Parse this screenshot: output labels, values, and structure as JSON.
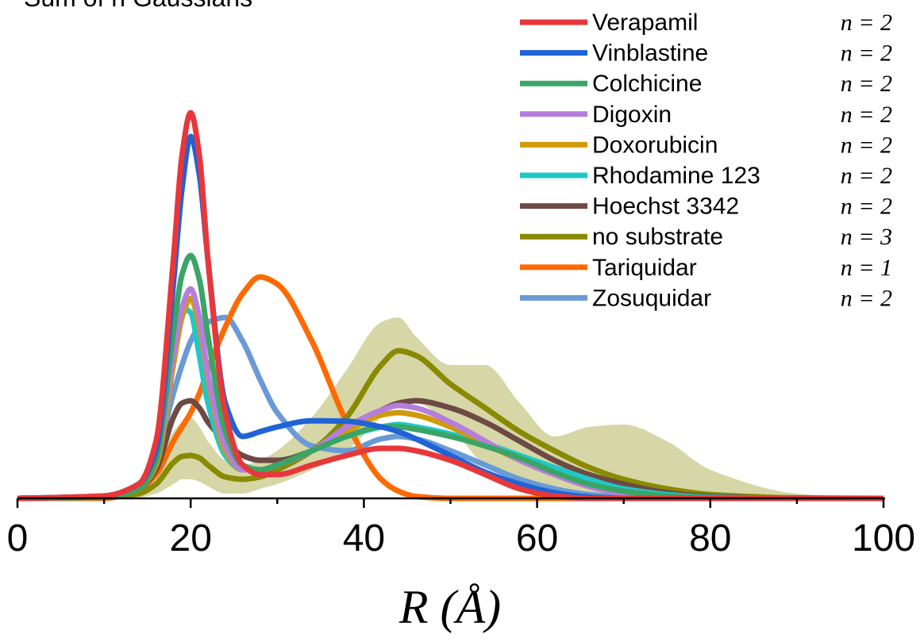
{
  "chart_data": {
    "type": "line",
    "title": "Sum of n Gaussians",
    "xlabel": "R (Å)",
    "x": [
      0,
      10,
      14,
      16,
      18,
      19,
      20,
      21,
      22,
      24,
      26,
      28,
      30,
      34,
      38,
      42,
      44,
      46,
      50,
      54,
      58,
      62,
      66,
      70,
      75,
      80,
      90,
      100
    ],
    "xlim": [
      0,
      100
    ],
    "xticks": [
      0,
      20,
      40,
      60,
      80,
      100
    ],
    "xminor_ticks": [
      10,
      30,
      50,
      70,
      90
    ],
    "ylim": [
      0,
      1
    ],
    "series": [
      {
        "name": "Verapamil",
        "annotation": "n = 2",
        "color": "#e8373a",
        "values": [
          0,
          0.005,
          0.03,
          0.12,
          0.5,
          0.72,
          0.81,
          0.72,
          0.5,
          0.18,
          0.07,
          0.05,
          0.05,
          0.07,
          0.09,
          0.105,
          0.105,
          0.1,
          0.08,
          0.05,
          0.02,
          0.005,
          0,
          0,
          0,
          0,
          0,
          0
        ]
      },
      {
        "name": "Vinblastine",
        "annotation": "n = 2",
        "color": "#1f63d6",
        "values": [
          0,
          0.005,
          0.03,
          0.1,
          0.45,
          0.65,
          0.76,
          0.68,
          0.5,
          0.2,
          0.13,
          0.14,
          0.15,
          0.163,
          0.162,
          0.15,
          0.14,
          0.125,
          0.09,
          0.055,
          0.03,
          0.012,
          0.003,
          0,
          0,
          0,
          0,
          0
        ]
      },
      {
        "name": "Colchicine",
        "annotation": "n = 2",
        "color": "#3aa565",
        "values": [
          0,
          0.003,
          0.02,
          0.08,
          0.35,
          0.47,
          0.51,
          0.46,
          0.34,
          0.14,
          0.07,
          0.06,
          0.07,
          0.1,
          0.13,
          0.15,
          0.15,
          0.145,
          0.13,
          0.11,
          0.085,
          0.055,
          0.03,
          0.015,
          0.005,
          0.001,
          0,
          0
        ]
      },
      {
        "name": "Digoxin",
        "annotation": "n = 2",
        "color": "#b57edc",
        "values": [
          0,
          0.003,
          0.02,
          0.08,
          0.3,
          0.4,
          0.44,
          0.38,
          0.26,
          0.11,
          0.06,
          0.06,
          0.07,
          0.1,
          0.15,
          0.185,
          0.195,
          0.19,
          0.16,
          0.12,
          0.08,
          0.05,
          0.025,
          0.01,
          0.003,
          0,
          0,
          0
        ]
      },
      {
        "name": "Doxorubicin",
        "annotation": "n = 2",
        "color": "#d09a0a",
        "values": [
          0,
          0.003,
          0.02,
          0.07,
          0.28,
          0.38,
          0.42,
          0.36,
          0.25,
          0.1,
          0.06,
          0.06,
          0.07,
          0.1,
          0.14,
          0.175,
          0.18,
          0.175,
          0.15,
          0.115,
          0.08,
          0.05,
          0.025,
          0.01,
          0.003,
          0,
          0,
          0
        ]
      },
      {
        "name": "Rhodamine 123",
        "annotation": "n = 2",
        "color": "#1fc8c8",
        "values": [
          0,
          0.003,
          0.02,
          0.1,
          0.33,
          0.4,
          0.39,
          0.3,
          0.2,
          0.09,
          0.06,
          0.06,
          0.07,
          0.1,
          0.13,
          0.15,
          0.155,
          0.15,
          0.135,
          0.115,
          0.09,
          0.065,
          0.04,
          0.02,
          0.008,
          0.002,
          0,
          0
        ]
      },
      {
        "name": "Hoechst 3342",
        "annotation": "n = 2",
        "color": "#6e4a45",
        "values": [
          0,
          0.003,
          0.02,
          0.06,
          0.17,
          0.2,
          0.205,
          0.19,
          0.16,
          0.12,
          0.09,
          0.08,
          0.08,
          0.1,
          0.14,
          0.185,
          0.2,
          0.205,
          0.19,
          0.16,
          0.12,
          0.08,
          0.05,
          0.03,
          0.012,
          0.004,
          0,
          0
        ]
      },
      {
        "name": "no substrate",
        "annotation": "n = 3",
        "color": "#8a8a00",
        "values": [
          0,
          0.002,
          0.01,
          0.03,
          0.075,
          0.088,
          0.09,
          0.085,
          0.07,
          0.045,
          0.04,
          0.045,
          0.06,
          0.1,
          0.17,
          0.28,
          0.31,
          0.3,
          0.24,
          0.19,
          0.14,
          0.1,
          0.065,
          0.04,
          0.02,
          0.008,
          0.001,
          0
        ],
        "band_upper": [
          0,
          0.004,
          0.02,
          0.06,
          0.14,
          0.16,
          0.17,
          0.15,
          0.12,
          0.08,
          0.07,
          0.08,
          0.1,
          0.17,
          0.27,
          0.37,
          0.38,
          0.34,
          0.28,
          0.28,
          0.2,
          0.13,
          0.15,
          0.155,
          0.12,
          0.06,
          0.01,
          0
        ],
        "band_lower": [
          0,
          0,
          0.002,
          0.01,
          0.03,
          0.04,
          0.04,
          0.035,
          0.025,
          0.01,
          0.01,
          0.02,
          0.03,
          0.06,
          0.1,
          0.17,
          0.2,
          0.2,
          0.15,
          0.07,
          0.04,
          0.02,
          0.01,
          0.005,
          0,
          0,
          0,
          0
        ]
      },
      {
        "name": "Tariquidar",
        "annotation": "n = 1",
        "color": "#ff6a00",
        "values": [
          0,
          0,
          0.02,
          0.05,
          0.12,
          0.15,
          0.18,
          0.22,
          0.27,
          0.36,
          0.43,
          0.465,
          0.45,
          0.33,
          0.16,
          0.04,
          0.015,
          0.004,
          0,
          0,
          0,
          0,
          0,
          0,
          0,
          0,
          0,
          0
        ]
      },
      {
        "name": "Zosuquidar",
        "annotation": "n = 2",
        "color": "#6a9ad6",
        "values": [
          0,
          0.003,
          0.03,
          0.09,
          0.22,
          0.28,
          0.33,
          0.36,
          0.37,
          0.38,
          0.33,
          0.25,
          0.18,
          0.11,
          0.1,
          0.125,
          0.13,
          0.125,
          0.1,
          0.07,
          0.04,
          0.02,
          0.008,
          0.003,
          0,
          0,
          0,
          0
        ]
      }
    ]
  }
}
